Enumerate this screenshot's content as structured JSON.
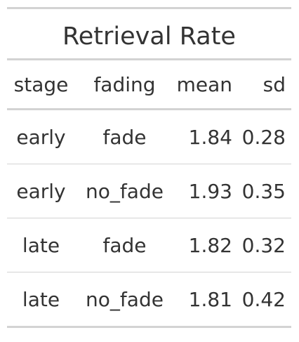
{
  "table": {
    "title": "Retrieval Rate",
    "columns": [
      "stage",
      "fading",
      "mean",
      "sd"
    ],
    "rows": [
      {
        "stage": "early",
        "fading": "fade",
        "mean": "1.84",
        "sd": "0.28"
      },
      {
        "stage": "early",
        "fading": "no_fade",
        "mean": "1.93",
        "sd": "0.35"
      },
      {
        "stage": "late",
        "fading": "fade",
        "mean": "1.82",
        "sd": "0.32"
      },
      {
        "stage": "late",
        "fading": "no_fade",
        "mean": "1.81",
        "sd": "0.42"
      }
    ]
  },
  "colors": {
    "text": "#333333",
    "rule": "#d3d3d3",
    "background": "#ffffff"
  }
}
